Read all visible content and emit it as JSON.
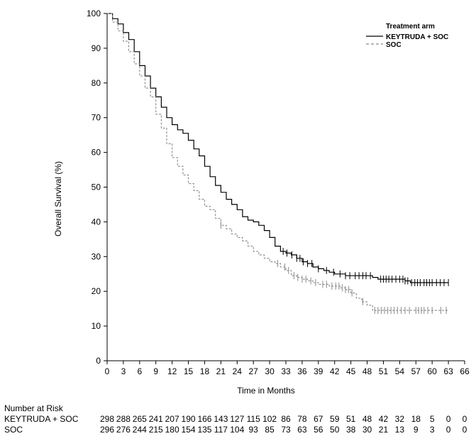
{
  "chart_data": {
    "type": "line",
    "ylabel": "Overall Survival (%)",
    "xlabel": "Time in Months",
    "xlim": [
      0,
      66
    ],
    "ylim": [
      0,
      100
    ],
    "xticks": [
      0,
      3,
      6,
      9,
      12,
      15,
      18,
      21,
      24,
      27,
      30,
      33,
      36,
      39,
      42,
      45,
      48,
      51,
      54,
      57,
      60,
      63,
      66
    ],
    "yticks": [
      0,
      10,
      20,
      30,
      40,
      50,
      60,
      70,
      80,
      90,
      100
    ],
    "legend": {
      "title": "Treatment arm",
      "position": "top-right",
      "entries": [
        "KEYTRUDA + SOC",
        "SOC"
      ]
    },
    "series": [
      {
        "name": "KEYTRUDA + SOC",
        "style": "solid",
        "color": "#000000",
        "points": [
          [
            0,
            100
          ],
          [
            1,
            98.5
          ],
          [
            2,
            97
          ],
          [
            3,
            94.5
          ],
          [
            4,
            92.5
          ],
          [
            5,
            89
          ],
          [
            6,
            85
          ],
          [
            7,
            82
          ],
          [
            8,
            78.5
          ],
          [
            9,
            76
          ],
          [
            10,
            73
          ],
          [
            11,
            70
          ],
          [
            12,
            68
          ],
          [
            13,
            66.5
          ],
          [
            14,
            65.5
          ],
          [
            15,
            63.5
          ],
          [
            16,
            61
          ],
          [
            17,
            59
          ],
          [
            18,
            56
          ],
          [
            19,
            53
          ],
          [
            20,
            50.5
          ],
          [
            21,
            48.5
          ],
          [
            22,
            46.5
          ],
          [
            23,
            45
          ],
          [
            24,
            43.5
          ],
          [
            25,
            41.5
          ],
          [
            26,
            40.5
          ],
          [
            27,
            40
          ],
          [
            28,
            39
          ],
          [
            29,
            37.5
          ],
          [
            30,
            35.5
          ],
          [
            31,
            33
          ],
          [
            32,
            31.5
          ],
          [
            33,
            31
          ],
          [
            34,
            30.5
          ],
          [
            35,
            29.5
          ],
          [
            36,
            28.5
          ],
          [
            37,
            28
          ],
          [
            38,
            27
          ],
          [
            39,
            26.5
          ],
          [
            40,
            26
          ],
          [
            41,
            25.5
          ],
          [
            42,
            25
          ],
          [
            43,
            25
          ],
          [
            44,
            24.5
          ],
          [
            45,
            24.5
          ],
          [
            46,
            24.5
          ],
          [
            47,
            24.5
          ],
          [
            48,
            24.5
          ],
          [
            49,
            24
          ],
          [
            50,
            23.5
          ],
          [
            51,
            23.5
          ],
          [
            52,
            23.5
          ],
          [
            53,
            23.5
          ],
          [
            54,
            23.5
          ],
          [
            55,
            23
          ],
          [
            56,
            22.5
          ],
          [
            57,
            22.5
          ],
          [
            58,
            22.5
          ],
          [
            59,
            22.5
          ],
          [
            60,
            22.5
          ],
          [
            61,
            22.5
          ],
          [
            62,
            22.5
          ],
          [
            63,
            22.5
          ]
        ],
        "censored": [
          32.5,
          33.2,
          34.1,
          35,
          35.6,
          36.2,
          37,
          37.8,
          39,
          40.5,
          41.8,
          43,
          44,
          44.8,
          45.8,
          46.5,
          47.2,
          47.8,
          48.6,
          50.5,
          51,
          51.5,
          52,
          52.6,
          53.3,
          54,
          54.6,
          55,
          55.5,
          56.2,
          56.8,
          57.3,
          57.8,
          58.5,
          59,
          59.5,
          60,
          60.8,
          61.5,
          62.2,
          63
        ]
      },
      {
        "name": "SOC",
        "style": "dashed",
        "color": "#8a8a8a",
        "points": [
          [
            0,
            100
          ],
          [
            1,
            97.5
          ],
          [
            2,
            95
          ],
          [
            3,
            92
          ],
          [
            4,
            89
          ],
          [
            5,
            85.5
          ],
          [
            6,
            82
          ],
          [
            7,
            78.5
          ],
          [
            8,
            76
          ],
          [
            9,
            71
          ],
          [
            10,
            67
          ],
          [
            11,
            62.5
          ],
          [
            12,
            58.5
          ],
          [
            13,
            56
          ],
          [
            14,
            53.5
          ],
          [
            15,
            51
          ],
          [
            16,
            49
          ],
          [
            17,
            46.5
          ],
          [
            18,
            44.5
          ],
          [
            19,
            43.5
          ],
          [
            20,
            41
          ],
          [
            21,
            39
          ],
          [
            22,
            38
          ],
          [
            23,
            36.5
          ],
          [
            24,
            35.5
          ],
          [
            25,
            34.5
          ],
          [
            26,
            33
          ],
          [
            27,
            31.5
          ],
          [
            28,
            30.5
          ],
          [
            29,
            29.5
          ],
          [
            30,
            28.5
          ],
          [
            31,
            28
          ],
          [
            32,
            27
          ],
          [
            33,
            26
          ],
          [
            34,
            24.5
          ],
          [
            35,
            24
          ],
          [
            36,
            23.5
          ],
          [
            37,
            23
          ],
          [
            38,
            22.5
          ],
          [
            39,
            22
          ],
          [
            40,
            22
          ],
          [
            41,
            21.5
          ],
          [
            42,
            21.5
          ],
          [
            43,
            21
          ],
          [
            44,
            20.5
          ],
          [
            45,
            19.5
          ],
          [
            46,
            18
          ],
          [
            47,
            17
          ],
          [
            48,
            16
          ],
          [
            49,
            14.5
          ],
          [
            50,
            14.5
          ],
          [
            51,
            14.5
          ],
          [
            52,
            14.5
          ],
          [
            53,
            14.5
          ],
          [
            54,
            14.5
          ],
          [
            55,
            14.5
          ],
          [
            56,
            14.5
          ],
          [
            57,
            14.5
          ],
          [
            58,
            14.5
          ],
          [
            59,
            14.5
          ],
          [
            60,
            14.5
          ],
          [
            61,
            14.5
          ],
          [
            62,
            14.5
          ],
          [
            63,
            14.5
          ]
        ],
        "censored": [
          21,
          31.5,
          32.8,
          33.5,
          34.5,
          35.2,
          36,
          36.7,
          37.6,
          38.5,
          39.8,
          40.5,
          41.5,
          42.2,
          42.8,
          43.4,
          44,
          44.6,
          45.2,
          47.2,
          49.4,
          50,
          50.6,
          51.2,
          51.8,
          52.4,
          53,
          53.6,
          54.3,
          55,
          55.8,
          57,
          57.5,
          58,
          58.5,
          59.2,
          60,
          61.6,
          62.6
        ]
      }
    ],
    "number_at_risk": {
      "title": "Number at Risk",
      "rows": [
        {
          "label": "KEYTRUDA + SOC",
          "values": [
            298,
            288,
            265,
            241,
            207,
            190,
            166,
            143,
            127,
            115,
            102,
            86,
            78,
            67,
            59,
            51,
            48,
            42,
            32,
            18,
            5,
            0,
            0
          ]
        },
        {
          "label": "SOC",
          "values": [
            296,
            276,
            244,
            215,
            180,
            154,
            135,
            117,
            104,
            93,
            85,
            73,
            63,
            56,
            50,
            38,
            30,
            21,
            13,
            9,
            3,
            0,
            0
          ]
        }
      ]
    }
  },
  "colors": {
    "axis": "#000000",
    "treatment": "#000000",
    "control": "#8a8a8a"
  }
}
